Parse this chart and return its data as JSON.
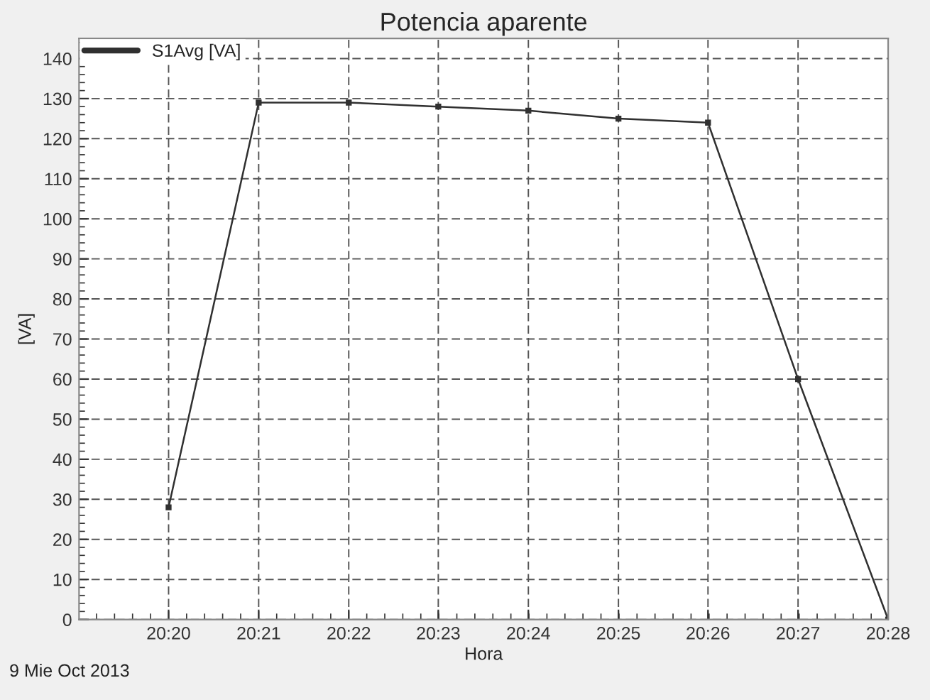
{
  "chart_data": {
    "type": "line",
    "title": "Potencia aparente",
    "xlabel": "Hora",
    "ylabel": "[VA]",
    "x": [
      20.3333,
      20.35,
      20.3667,
      20.3833,
      20.4,
      20.4167,
      20.4333,
      20.45,
      20.4667
    ],
    "series": [
      {
        "name": "S1Avg [VA]",
        "color": "#303030",
        "values": [
          28,
          129,
          129,
          128,
          127,
          125,
          124,
          60,
          0
        ]
      }
    ],
    "xlim": [
      20.3167,
      20.4667
    ],
    "xticks": [
      {
        "value": 20.3333,
        "label": "20:20"
      },
      {
        "value": 20.35,
        "label": "20:21"
      },
      {
        "value": 20.3667,
        "label": "20:22"
      },
      {
        "value": 20.3833,
        "label": "20:23"
      },
      {
        "value": 20.4,
        "label": "20:24"
      },
      {
        "value": 20.4167,
        "label": "20:25"
      },
      {
        "value": 20.4333,
        "label": "20:26"
      },
      {
        "value": 20.45,
        "label": "20:27"
      },
      {
        "value": 20.4667,
        "label": "20:28"
      }
    ],
    "ylim": [
      0,
      145
    ],
    "yticks": [
      0,
      10,
      20,
      30,
      40,
      50,
      60,
      70,
      80,
      90,
      100,
      110,
      120,
      130,
      140
    ],
    "grid": true,
    "legend": "top left",
    "marker": "square",
    "line_style": "solid",
    "annotations": [
      "9 Mie Oct 2013"
    ]
  }
}
